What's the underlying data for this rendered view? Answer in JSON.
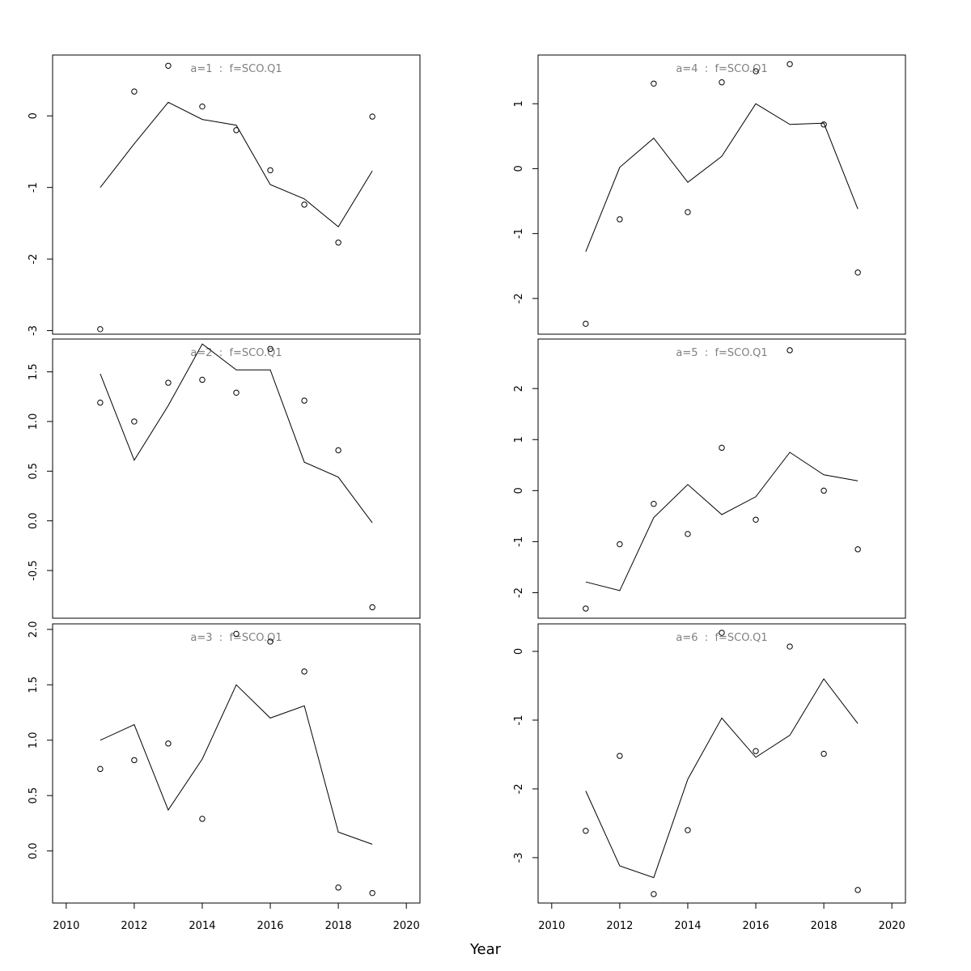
{
  "xlabel": "Year",
  "chart_data": [
    {
      "type": "line",
      "title": "a=1  :  f=SCO.Q1",
      "x": [
        2011,
        2012,
        2013,
        2014,
        2015,
        2016,
        2017,
        2018,
        2019
      ],
      "series": [
        {
          "kind": "line",
          "values": [
            -1.0,
            -0.39,
            0.19,
            -0.05,
            -0.13,
            -0.96,
            -1.16,
            -1.55,
            -0.77
          ]
        },
        {
          "kind": "points",
          "values": [
            -2.98,
            0.34,
            0.7,
            0.13,
            -0.2,
            -0.76,
            -1.24,
            -1.77,
            -0.01
          ]
        }
      ],
      "yticks": [
        -3,
        -2,
        -1,
        0
      ],
      "ytick_labels": [
        "-3",
        "-2",
        "-1",
        "0"
      ],
      "xlim": [
        2009.6,
        2020.4
      ],
      "ylim": [
        -3.05,
        0.85
      ]
    },
    {
      "type": "line",
      "title": "a=2  :  f=SCO.Q1",
      "x": [
        2011,
        2012,
        2013,
        2014,
        2015,
        2016,
        2017,
        2018,
        2019
      ],
      "series": [
        {
          "kind": "line",
          "values": [
            1.48,
            0.61,
            1.16,
            1.78,
            1.52,
            1.52,
            0.59,
            0.44,
            -0.02
          ]
        },
        {
          "kind": "points",
          "values": [
            1.19,
            1.0,
            1.39,
            1.42,
            1.29,
            1.73,
            1.21,
            0.71,
            -0.87
          ]
        }
      ],
      "yticks": [
        -0.5,
        0.0,
        0.5,
        1.0,
        1.5
      ],
      "ytick_labels": [
        "-0.5",
        "0.0",
        "0.5",
        "1.0",
        "1.5"
      ],
      "xlim": [
        2009.6,
        2020.4
      ],
      "ylim": [
        -0.98,
        1.83
      ]
    },
    {
      "type": "line",
      "title": "a=3  :  f=SCO.Q1",
      "x": [
        2011,
        2012,
        2013,
        2014,
        2015,
        2016,
        2017,
        2018,
        2019
      ],
      "series": [
        {
          "kind": "line",
          "values": [
            1.0,
            1.14,
            0.37,
            0.83,
            1.5,
            1.2,
            1.31,
            0.17,
            0.06
          ]
        },
        {
          "kind": "points",
          "values": [
            0.74,
            0.82,
            0.97,
            0.29,
            1.96,
            1.89,
            1.62,
            -0.33,
            -0.38
          ]
        }
      ],
      "yticks": [
        0.0,
        0.5,
        1.0,
        1.5,
        2.0
      ],
      "ytick_labels": [
        "0.0",
        "0.5",
        "1.0",
        "1.5",
        "2.0"
      ],
      "xlim": [
        2009.6,
        2020.4
      ],
      "ylim": [
        -0.47,
        2.05
      ]
    },
    {
      "type": "line",
      "title": "a=4  :  f=SCO.Q1",
      "x": [
        2011,
        2012,
        2013,
        2014,
        2015,
        2016,
        2017,
        2018,
        2019
      ],
      "series": [
        {
          "kind": "line",
          "values": [
            -1.28,
            0.02,
            0.47,
            -0.21,
            0.19,
            1.0,
            0.68,
            0.7,
            -0.62
          ]
        },
        {
          "kind": "points",
          "values": [
            -2.39,
            -0.78,
            1.31,
            -0.67,
            1.33,
            1.5,
            1.61,
            0.68,
            -1.6
          ]
        }
      ],
      "yticks": [
        -2,
        -1,
        0,
        1
      ],
      "ytick_labels": [
        "-2",
        "-1",
        "0",
        "1"
      ],
      "xlim": [
        2009.6,
        2020.4
      ],
      "ylim": [
        -2.55,
        1.75
      ]
    },
    {
      "type": "line",
      "title": "a=5  :  f=SCO.Q1",
      "x": [
        2011,
        2012,
        2013,
        2014,
        2015,
        2016,
        2017,
        2018,
        2019
      ],
      "series": [
        {
          "kind": "line",
          "values": [
            -1.79,
            -1.96,
            -0.53,
            0.12,
            -0.47,
            -0.12,
            0.75,
            0.31,
            0.19
          ]
        },
        {
          "kind": "points",
          "values": [
            -2.31,
            -1.05,
            -0.26,
            -0.85,
            0.84,
            -0.57,
            2.75,
            0.0,
            -1.15
          ]
        }
      ],
      "yticks": [
        -2,
        -1,
        0,
        1,
        2
      ],
      "ytick_labels": [
        "-2",
        "-1",
        "0",
        "1",
        "2"
      ],
      "xlim": [
        2009.6,
        2020.4
      ],
      "ylim": [
        -2.5,
        2.97
      ]
    },
    {
      "type": "line",
      "title": "a=6  :  f=SCO.Q1",
      "x": [
        2011,
        2012,
        2013,
        2014,
        2015,
        2016,
        2017,
        2018,
        2019
      ],
      "series": [
        {
          "kind": "line",
          "values": [
            -2.03,
            -3.12,
            -3.29,
            -1.86,
            -0.97,
            -1.54,
            -1.22,
            -0.4,
            -1.05
          ]
        },
        {
          "kind": "points",
          "values": [
            -2.61,
            -1.52,
            -3.53,
            -2.6,
            0.27,
            -1.45,
            0.07,
            -1.49,
            -3.47
          ]
        }
      ],
      "yticks": [
        -3,
        -2,
        -1,
        0
      ],
      "ytick_labels": [
        "-3",
        "-2",
        "-1",
        "0"
      ],
      "xlim": [
        2009.6,
        2020.4
      ],
      "ylim": [
        -3.66,
        0.4
      ]
    }
  ],
  "xaxis": {
    "ticks": [
      2010,
      2012,
      2014,
      2016,
      2018,
      2020
    ],
    "tick_labels": [
      "2010",
      "2012",
      "2014",
      "2016",
      "2018",
      "2020"
    ]
  }
}
